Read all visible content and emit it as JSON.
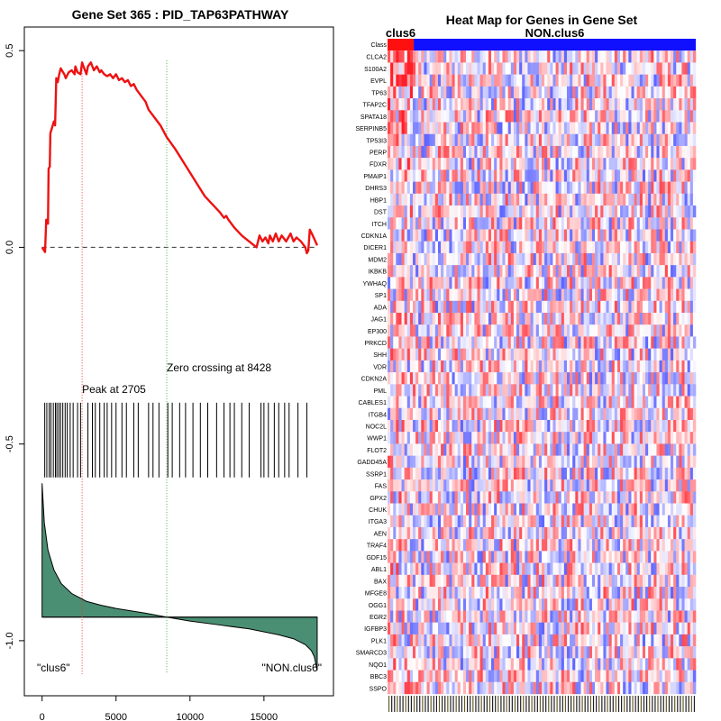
{
  "chart_data": [
    {
      "type": "line",
      "title": "Gene Set  365 : PID_TAP63PATHWAY",
      "xlabel": "",
      "ylabel": "",
      "xlim": [
        -1200,
        19700
      ],
      "ylim": [
        -1.14,
        0.56
      ],
      "x_ticks": [
        0,
        5000,
        10000,
        15000
      ],
      "x_tick_labels": [
        "0",
        "5000",
        "10000",
        "15000"
      ],
      "y_ticks": [
        0.5,
        0.0,
        -0.5,
        -1.0
      ],
      "y_tick_labels": [
        "0.5",
        "0.0",
        "-0.5",
        "-1.0"
      ],
      "running_es": {
        "name": "enrichment score",
        "color": "#ee1111",
        "x": [
          0,
          200,
          280,
          360,
          400,
          440,
          520,
          560,
          640,
          720,
          800,
          880,
          960,
          1060,
          1160,
          1260,
          1500,
          1600,
          1800,
          2000,
          2200,
          2250,
          2400,
          2600,
          2705,
          2800,
          3000,
          3100,
          3300,
          3500,
          3700,
          3900,
          4000,
          4200,
          4400,
          4600,
          4800,
          5000,
          5200,
          5400,
          5600,
          5800,
          6000,
          6200,
          6400,
          6600,
          6800,
          7000,
          7200,
          7600,
          8000,
          8428,
          9000,
          9500,
          10000,
          10500,
          11000,
          11500,
          12000,
          12300,
          12450,
          12600,
          13000,
          13500,
          14000,
          14500,
          14700,
          14900,
          15100,
          15300,
          15400,
          15600,
          15800,
          16000,
          16200,
          16500,
          16800,
          17000,
          17200,
          17500,
          17800,
          17900,
          18000,
          18100,
          18300,
          18600
        ],
        "y": [
          0.0,
          -0.012,
          0.07,
          0.065,
          0.06,
          0.2,
          0.205,
          0.29,
          0.3,
          0.31,
          0.32,
          0.31,
          0.43,
          0.42,
          0.44,
          0.455,
          0.44,
          0.43,
          0.445,
          0.45,
          0.44,
          0.46,
          0.445,
          0.44,
          0.47,
          0.46,
          0.44,
          0.46,
          0.47,
          0.45,
          0.46,
          0.445,
          0.45,
          0.44,
          0.435,
          0.44,
          0.43,
          0.44,
          0.425,
          0.43,
          0.42,
          0.425,
          0.41,
          0.415,
          0.4,
          0.39,
          0.38,
          0.37,
          0.35,
          0.33,
          0.31,
          0.28,
          0.25,
          0.22,
          0.19,
          0.16,
          0.13,
          0.11,
          0.09,
          0.075,
          0.08,
          0.07,
          0.05,
          0.03,
          0.015,
          0.0,
          0.03,
          0.015,
          0.025,
          0.01,
          0.03,
          0.015,
          0.035,
          0.015,
          0.03,
          0.015,
          0.035,
          0.015,
          0.025,
          0.015,
          0.0,
          -0.015,
          -0.008,
          0.045,
          0.03,
          0.005
        ]
      },
      "baseline": {
        "y": 0.0,
        "style": "dashed",
        "color": "#333333"
      },
      "peak": {
        "x": 2705,
        "label": "Peak at 2705",
        "color": "#ee3333"
      },
      "zero_crossing": {
        "x": 8428,
        "label": "Zero crossing at 8428",
        "color": "#33bb33"
      },
      "hit_positions": [
        180,
        320,
        480,
        600,
        760,
        900,
        1000,
        1130,
        1250,
        1400,
        1560,
        1700,
        1900,
        2100,
        2400,
        2600,
        3100,
        3400,
        3600,
        3900,
        4200,
        4400,
        4700,
        5000,
        5400,
        5700,
        6200,
        6500,
        7200,
        7500,
        7900,
        8500,
        8800,
        9300,
        9700,
        10200,
        10700,
        11200,
        11800,
        12300,
        12700,
        13000,
        13500,
        14000,
        14800,
        15000,
        15300,
        15700,
        16000,
        16400,
        16700,
        17300,
        17900
      ],
      "ranked_metric": {
        "fill_color": "#4a8f73",
        "zero_y": -0.94,
        "x": [
          0,
          150,
          400,
          800,
          1300,
          2000,
          3000,
          4000,
          5000,
          7000,
          8428,
          10000,
          12000,
          14000,
          16000,
          17000,
          17800,
          18200,
          18400,
          18600
        ],
        "y": [
          -0.6,
          -0.7,
          -0.77,
          -0.82,
          -0.855,
          -0.88,
          -0.9,
          -0.91,
          -0.918,
          -0.93,
          -0.94,
          -0.95,
          -0.96,
          -0.97,
          -0.985,
          -0.995,
          -1.01,
          -1.025,
          -1.04,
          -1.075
        ]
      },
      "group_labels": {
        "left": "\"clus6\"",
        "right": "\"NON.clus6\""
      }
    },
    {
      "type": "heatmap",
      "title": "Heat Map for Genes in Gene Set",
      "class_row_label": "Class",
      "groups": [
        {
          "name": "clus6",
          "color": "#ff1010",
          "fraction": 0.085
        },
        {
          "name": "NON.clus6",
          "color": "#1010ff",
          "fraction": 0.915
        }
      ],
      "n_samples": 110,
      "low_color": "#0000ff",
      "mid_color": "#ffffff",
      "high_color": "#ff0000",
      "genes": [
        "CLCA2",
        "S100A2",
        "EVPL",
        "TP63",
        "TFAP2C",
        "SPATA18",
        "SERPINB5",
        "TP53I3",
        "PERP",
        "FDXR",
        "PMAIP1",
        "DHRS3",
        "HBP1",
        "DST",
        "ITCH",
        "CDKN1A",
        "DICER1",
        "MDM2",
        "IKBKB",
        "YWHAQ",
        "SP1",
        "ADA",
        "JAG1",
        "EP300",
        "PRKCD",
        "SHH",
        "VDR",
        "CDKN2A",
        "PML",
        "CABLES1",
        "ITGB4",
        "NOC2L",
        "WWP1",
        "FLOT2",
        "GADD45A",
        "SSRP1",
        "FAS",
        "GPX2",
        "CHUK",
        "ITGA3",
        "AEN",
        "TRAF4",
        "GDF15",
        "ABL1",
        "BAX",
        "MFGE8",
        "OGG1",
        "EGR2",
        "IGFBP3",
        "PLK1",
        "SMARCD3",
        "NQO1",
        "BBC3",
        "SSPO"
      ]
    }
  ]
}
